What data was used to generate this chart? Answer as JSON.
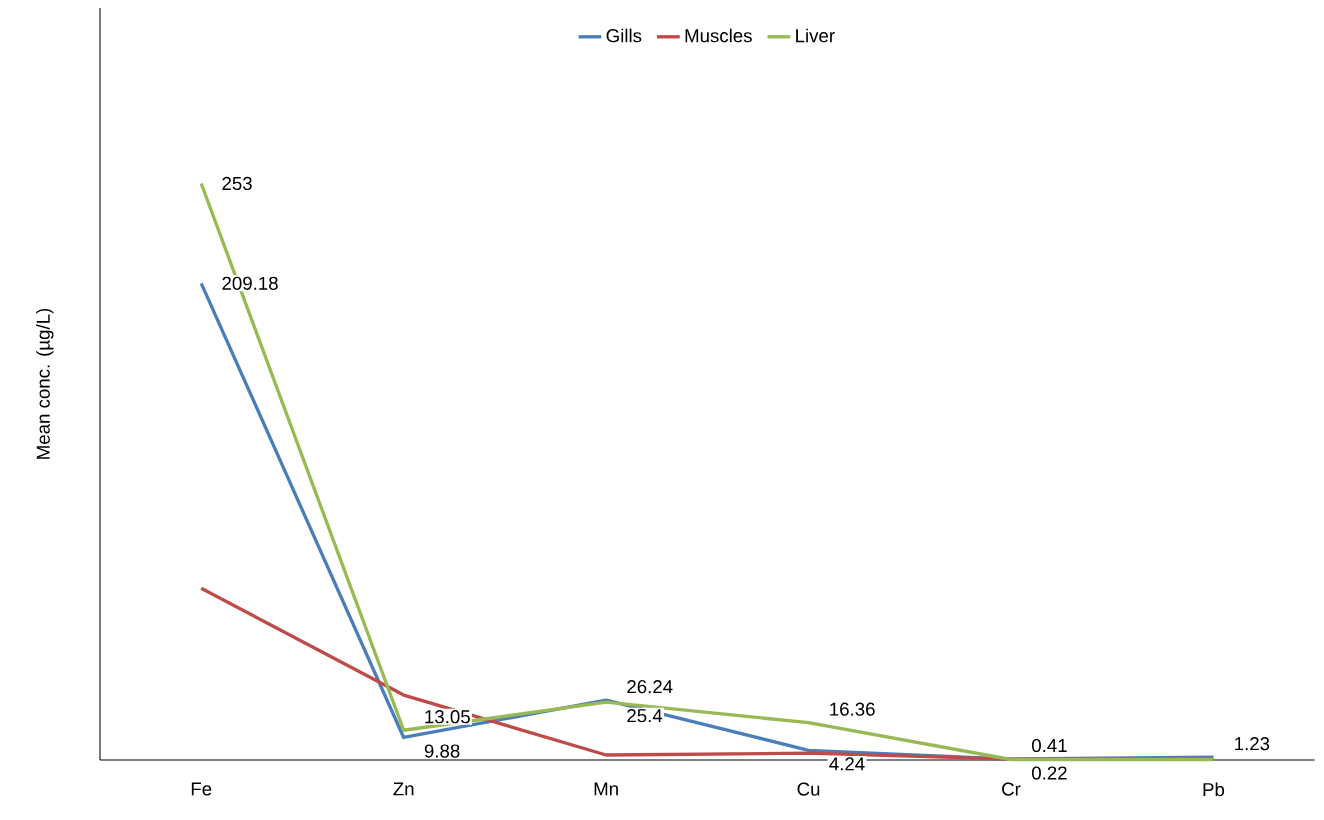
{
  "chart_data": {
    "type": "line",
    "ylabel": "Mean conc. (µg/L)",
    "categories": [
      "Fe",
      "Zn",
      "Mn",
      "Cu",
      "Cr",
      "Pb"
    ],
    "series": [
      {
        "name": "Gills",
        "color": "#4a7ebb",
        "values": [
          209.18,
          9.88,
          26.24,
          4.24,
          0.41,
          1.23
        ],
        "value_labels": [
          "209.18",
          "9.88",
          "26.24",
          "4.24",
          "0.41",
          "1.23"
        ]
      },
      {
        "name": "Muscles",
        "color": "#be4b48",
        "values": [
          75.4,
          28.5,
          2.2,
          3,
          0.4,
          0.4
        ]
      },
      {
        "name": "Liver",
        "color": "#98b954",
        "values": [
          253,
          13.05,
          25.4,
          16.36,
          0.22,
          0.2
        ],
        "value_labels": [
          "253",
          "13.05",
          "25.4",
          "16.36",
          "0.22",
          null
        ]
      }
    ],
    "ylim": [
      0,
      330
    ],
    "tick_labels": "x",
    "grid": false,
    "legend": "top",
    "marker": "none",
    "line_style": "solid"
  }
}
